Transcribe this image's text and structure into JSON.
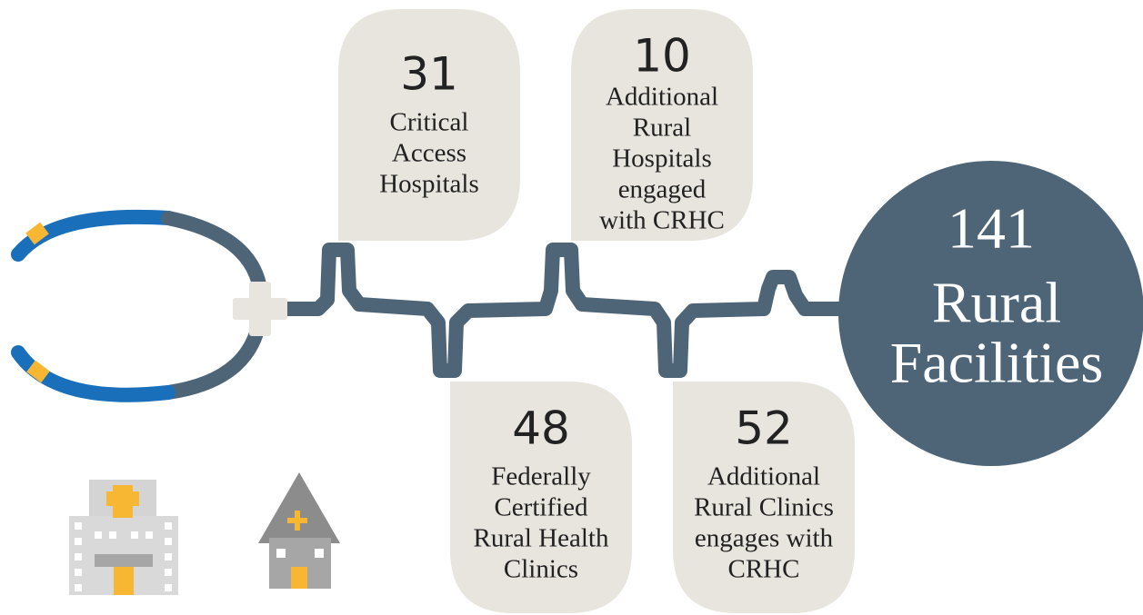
{
  "callouts": [
    {
      "number": 31,
      "label": [
        "Critical",
        "Access",
        "Hospitals"
      ]
    },
    {
      "number": 10,
      "label": [
        "Additional",
        "Rural",
        "Hospitals",
        "engaged",
        "with CRHC"
      ]
    },
    {
      "number": 48,
      "label": [
        "Federally",
        "Certified",
        "Rural Health",
        "Clinics"
      ]
    },
    {
      "number": 52,
      "label": [
        "Additional",
        "Rural Clinics",
        "engages with",
        "CRHC"
      ]
    }
  ],
  "total": {
    "number": 141,
    "label": [
      "Rural",
      "Facilities"
    ]
  }
}
